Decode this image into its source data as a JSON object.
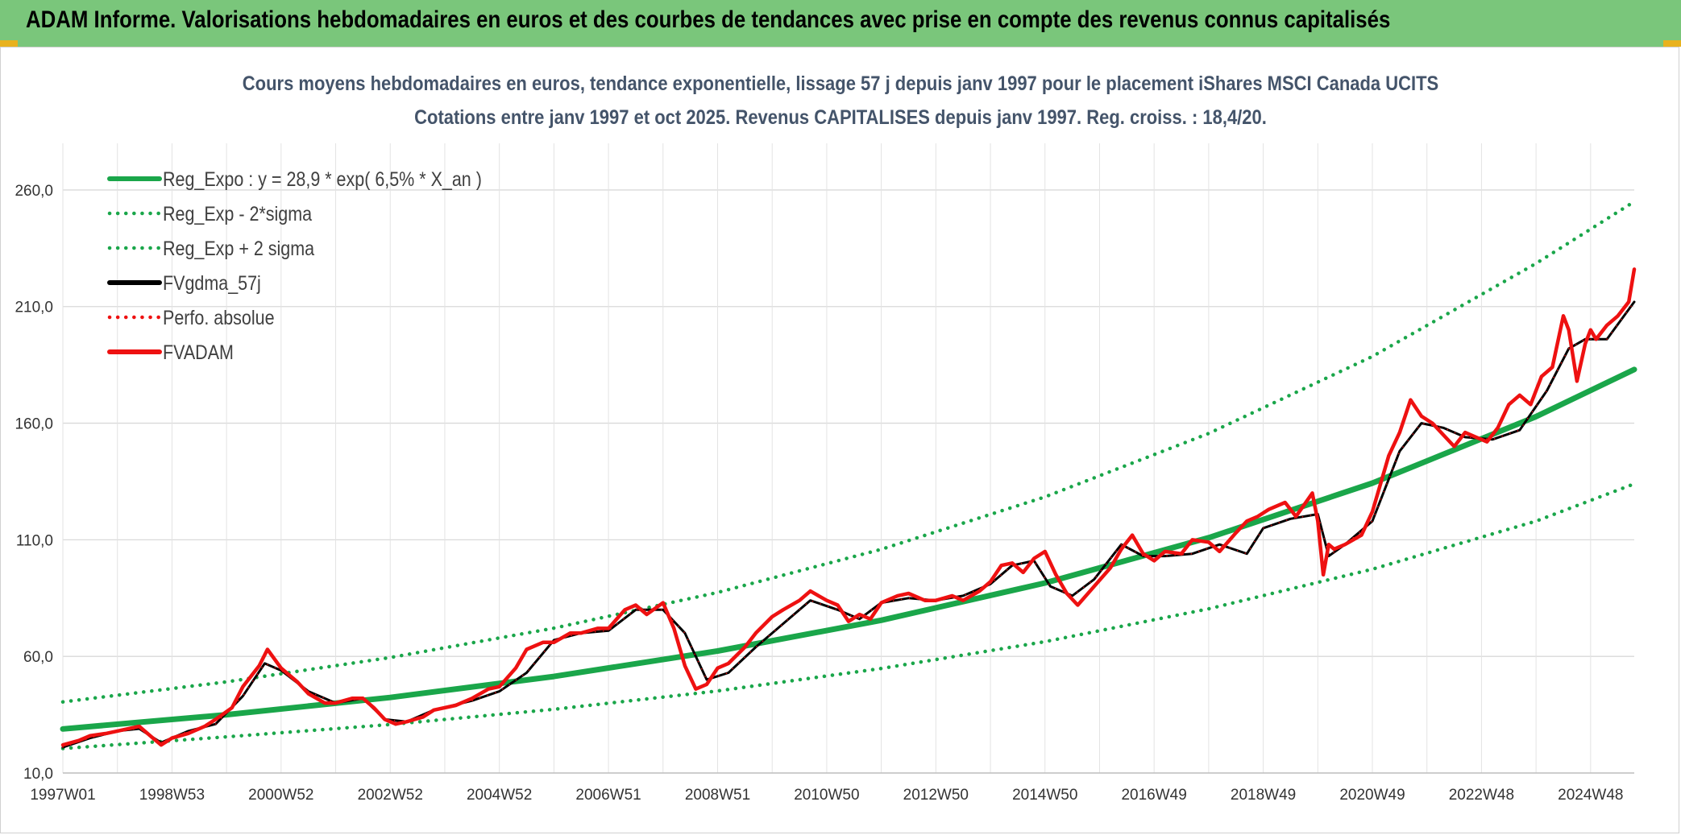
{
  "banner": {
    "title": "ADAM Informe. Valorisations hebdomadaires en euros et des courbes de tendances avec prise en compte des revenus connus capitalisés"
  },
  "colors": {
    "banner_bg": "#7ac67b",
    "trend": "#1aa64a",
    "fv": "#000000",
    "adam": "#ee1111"
  },
  "chart_data": {
    "type": "line",
    "title_lines": [
      "Cours moyens hebdomadaires en euros, tendance exponentielle, lissage 57 j depuis janv 1997 pour le placement iShares MSCI Canada UCITS",
      "Cotations entre janv 1997 et oct 2025. Revenus CAPITALISES depuis janv 1997. Reg. croiss. : 18,4/20."
    ],
    "ylim": [
      10,
      280
    ],
    "yticks": [
      "10,0",
      "60,0",
      "110,0",
      "160,0",
      "210,0",
      "260,0"
    ],
    "ytick_values": [
      10,
      60,
      110,
      160,
      210,
      260
    ],
    "xlim": [
      1997.0,
      2025.8
    ],
    "xticks": [
      "1997W01",
      "1998W53",
      "2000W52",
      "2002W52",
      "2004W52",
      "2006W51",
      "2008W51",
      "2010W50",
      "2012W50",
      "2014W50",
      "2016W49",
      "2018W49",
      "2020W49",
      "2022W48",
      "2024W48"
    ],
    "xtick_years": [
      1997.0,
      1999.0,
      2001.0,
      2003.0,
      2005.0,
      2007.0,
      2009.0,
      2011.0,
      2013.0,
      2015.0,
      2017.0,
      2019.0,
      2021.0,
      2023.0,
      2025.0
    ],
    "legend_position": "top-left",
    "grid": true,
    "series": [
      {
        "name": "Reg_Expo : y = 28,9 * exp( 6,5% *  X_an )",
        "style": "solid-thick",
        "color": "#1aa64a",
        "x": [
          1997.0,
          2000.0,
          2003.0,
          2006.0,
          2009.0,
          2012.0,
          2015.0,
          2018.0,
          2021.0,
          2024.0,
          2025.8
        ],
        "y": [
          28.9,
          35.0,
          42.4,
          51.4,
          62.3,
          75.5,
          91.5,
          110.9,
          134.3,
          162.8,
          183.0
        ]
      },
      {
        "name": "Reg_Exp - 2*sigma",
        "style": "dotted",
        "color": "#1aa64a",
        "x": [
          1997.0,
          2000.0,
          2003.0,
          2006.0,
          2009.0,
          2012.0,
          2015.0,
          2018.0,
          2021.0,
          2024.0,
          2025.8
        ],
        "y": [
          20.5,
          25.5,
          30.8,
          37.3,
          45.2,
          54.8,
          66.3,
          80.4,
          97.4,
          118.0,
          134.0
        ]
      },
      {
        "name": "Reg_Exp + 2 sigma",
        "style": "dotted",
        "color": "#1aa64a",
        "x": [
          1997.0,
          2000.0,
          2003.0,
          2006.0,
          2009.0,
          2012.0,
          2015.0,
          2018.0,
          2021.0,
          2024.0,
          2025.8
        ],
        "y": [
          40.5,
          49.1,
          59.5,
          72.1,
          87.4,
          105.9,
          128.4,
          155.6,
          188.6,
          228.5,
          255.0
        ]
      },
      {
        "name": "FVgdma_57j",
        "style": "solid",
        "color": "#000000",
        "x": [
          1997.0,
          1997.5,
          1998.0,
          1998.4,
          1998.8,
          1999.3,
          1999.8,
          2000.3,
          2000.7,
          2001.0,
          2001.5,
          2002.0,
          2002.5,
          2002.9,
          2003.3,
          2003.8,
          2004.5,
          2005.0,
          2005.5,
          2006.0,
          2006.5,
          2007.0,
          2007.5,
          2008.0,
          2008.4,
          2008.8,
          2009.2,
          2009.7,
          2010.2,
          2010.7,
          2011.2,
          2011.6,
          2012.0,
          2012.5,
          2013.0,
          2013.5,
          2014.0,
          2014.4,
          2014.8,
          2015.1,
          2015.5,
          2015.9,
          2016.4,
          2016.8,
          2017.2,
          2017.7,
          2018.2,
          2018.7,
          2019.0,
          2019.5,
          2020.0,
          2020.2,
          2020.5,
          2021.0,
          2021.5,
          2021.9,
          2022.3,
          2022.7,
          2023.2,
          2023.7,
          2024.2,
          2024.6,
          2024.9,
          2025.3,
          2025.8
        ],
        "y": [
          21,
          25,
          28,
          29,
          23,
          28,
          31,
          43,
          57,
          54,
          45,
          40,
          42,
          33,
          32,
          37,
          41,
          45,
          53,
          67,
          70,
          71,
          80,
          80,
          70,
          50,
          53,
          64,
          74,
          84,
          80,
          76,
          83,
          85,
          84,
          86,
          91,
          99,
          101,
          90,
          86,
          93,
          108,
          103,
          103,
          104,
          108,
          104,
          115,
          119,
          121,
          103,
          108,
          118,
          148,
          160,
          158,
          154,
          153,
          157,
          174,
          192,
          196,
          196,
          212
        ]
      },
      {
        "name": "Perfo. absolue",
        "style": "dotted",
        "color": "#ee1111",
        "x": [
          1997.0,
          1997.5,
          1998.0,
          1998.4,
          1998.8,
          1999.3,
          1999.8,
          2000.3,
          2000.7,
          2001.0,
          2001.5,
          2002.0,
          2002.5,
          2002.9,
          2003.3,
          2003.8,
          2004.5,
          2005.0,
          2005.5,
          2006.0,
          2006.5,
          2007.0,
          2007.5,
          2008.0,
          2008.4,
          2008.8,
          2009.2,
          2009.7,
          2010.2,
          2010.7,
          2011.2,
          2011.6,
          2012.0,
          2012.5,
          2013.0,
          2013.5,
          2014.0,
          2014.4,
          2014.8,
          2015.1,
          2015.5,
          2015.9,
          2016.4,
          2016.8,
          2017.2,
          2017.7,
          2018.2,
          2018.7,
          2019.0,
          2019.5,
          2020.0,
          2020.2,
          2020.5,
          2021.0,
          2021.5,
          2021.9,
          2022.3,
          2022.7,
          2023.2,
          2023.7,
          2024.2,
          2024.6,
          2024.9,
          2025.3,
          2025.8
        ],
        "y": [
          21,
          25,
          28,
          29,
          23,
          28,
          31,
          43,
          57,
          54,
          45,
          40,
          42,
          33,
          32,
          37,
          41,
          45,
          53,
          67,
          70,
          71,
          80,
          80,
          70,
          50,
          53,
          64,
          74,
          84,
          80,
          76,
          83,
          85,
          84,
          86,
          91,
          99,
          101,
          90,
          86,
          93,
          108,
          103,
          103,
          104,
          108,
          104,
          115,
          119,
          121,
          103,
          108,
          118,
          148,
          160,
          158,
          154,
          153,
          157,
          174,
          192,
          196,
          196,
          212
        ]
      },
      {
        "name": "FVADAM",
        "style": "solid-thick",
        "color": "#ee1111",
        "x": [
          1997.0,
          1997.3,
          1997.5,
          1997.8,
          1998.0,
          1998.4,
          1998.6,
          1998.8,
          1999.0,
          1999.3,
          1999.6,
          1999.8,
          2000.1,
          2000.3,
          2000.6,
          2000.75,
          2001.0,
          2001.3,
          2001.5,
          2001.8,
          2002.0,
          2002.3,
          2002.5,
          2002.7,
          2002.9,
          2003.1,
          2003.3,
          2003.6,
          2003.8,
          2004.2,
          2004.5,
          2004.8,
          2005.0,
          2005.3,
          2005.5,
          2005.8,
          2006.0,
          2006.3,
          2006.5,
          2006.8,
          2007.0,
          2007.3,
          2007.5,
          2007.7,
          2008.0,
          2008.2,
          2008.4,
          2008.6,
          2008.8,
          2009.0,
          2009.2,
          2009.5,
          2009.7,
          2010.0,
          2010.2,
          2010.5,
          2010.7,
          2011.0,
          2011.2,
          2011.4,
          2011.6,
          2011.8,
          2012.0,
          2012.3,
          2012.5,
          2012.8,
          2013.0,
          2013.3,
          2013.5,
          2013.8,
          2014.0,
          2014.2,
          2014.4,
          2014.6,
          2014.8,
          2015.0,
          2015.2,
          2015.4,
          2015.6,
          2015.9,
          2016.2,
          2016.4,
          2016.6,
          2016.8,
          2017.0,
          2017.2,
          2017.5,
          2017.7,
          2018.0,
          2018.2,
          2018.5,
          2018.7,
          2018.9,
          2019.1,
          2019.4,
          2019.6,
          2019.9,
          2020.0,
          2020.1,
          2020.2,
          2020.3,
          2020.5,
          2020.8,
          2021.0,
          2021.3,
          2021.5,
          2021.7,
          2021.9,
          2022.1,
          2022.3,
          2022.5,
          2022.7,
          2022.9,
          2023.1,
          2023.3,
          2023.5,
          2023.7,
          2023.9,
          2024.1,
          2024.3,
          2024.5,
          2024.6,
          2024.75,
          2024.9,
          2025.0,
          2025.1,
          2025.3,
          2025.5,
          2025.7,
          2025.8
        ],
        "y": [
          22,
          24,
          26,
          27,
          28,
          30,
          26,
          22,
          25,
          27,
          30,
          33,
          38,
          47,
          56,
          63,
          55,
          49,
          44,
          40,
          40,
          42,
          42,
          38,
          33,
          31,
          32,
          34,
          37,
          39,
          42,
          46,
          47,
          55,
          63,
          66,
          66,
          70,
          70,
          72,
          72,
          80,
          82,
          78,
          83,
          72,
          56,
          46,
          48,
          55,
          57,
          64,
          70,
          77,
          80,
          84,
          88,
          84,
          82,
          75,
          78,
          76,
          83,
          86,
          87,
          84,
          84,
          86,
          84,
          88,
          92,
          99,
          100,
          96,
          102,
          105,
          95,
          87,
          82,
          90,
          98,
          106,
          112,
          104,
          101,
          105,
          104,
          110,
          109,
          105,
          113,
          118,
          120,
          123,
          126,
          120,
          130,
          118,
          95,
          108,
          106,
          108,
          112,
          122,
          146,
          156,
          170,
          163,
          160,
          155,
          150,
          156,
          154,
          152,
          158,
          168,
          172,
          168,
          180,
          184,
          206,
          200,
          178,
          194,
          200,
          196,
          202,
          206,
          212,
          226
        ]
      }
    ]
  }
}
